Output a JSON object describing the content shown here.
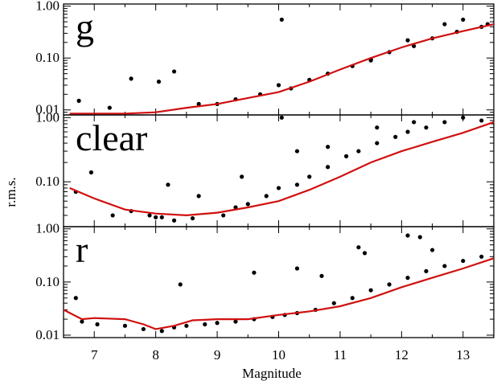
{
  "chart_data": {
    "type": "scatter",
    "xlabel": "Magnitude",
    "ylabel": "r.m.s.",
    "xlim": [
      6.5,
      13.5
    ],
    "x_ticks": [
      7,
      8,
      9,
      10,
      11,
      12,
      13
    ],
    "x_tick_labels": [
      "7",
      "8",
      "9",
      "10",
      "11",
      "12",
      "13"
    ],
    "y_scale": "log",
    "y_tick_labels": [
      "0.01",
      "0.10",
      "1.00"
    ],
    "grid": false,
    "point_color": "#000000",
    "curve_color": "#d01010",
    "panels": [
      {
        "label": "g",
        "ylim": [
          0.008,
          1.1
        ],
        "y_ticks": [
          0.01,
          0.1,
          1.0
        ],
        "y_tick_labels": [
          "0.01",
          "0.10",
          "1.00"
        ],
        "curve": {
          "x": [
            6.6,
            7.5,
            8.0,
            8.5,
            9.0,
            9.5,
            10.0,
            10.5,
            11.0,
            11.5,
            12.0,
            12.5,
            13.0,
            13.5
          ],
          "y": [
            0.0085,
            0.0085,
            0.009,
            0.011,
            0.013,
            0.017,
            0.022,
            0.035,
            0.06,
            0.1,
            0.16,
            0.24,
            0.33,
            0.45
          ]
        },
        "points": {
          "x": [
            6.75,
            7.25,
            7.6,
            8.05,
            8.3,
            8.7,
            9.0,
            9.3,
            9.7,
            10.0,
            10.2,
            10.5,
            10.8,
            11.2,
            11.5,
            11.8,
            12.2,
            12.5,
            12.9,
            13.3,
            10.05,
            11.5,
            12.1,
            12.7,
            13.0,
            13.4
          ],
          "y": [
            0.015,
            0.011,
            0.04,
            0.035,
            0.055,
            0.013,
            0.013,
            0.016,
            0.02,
            0.03,
            0.026,
            0.038,
            0.05,
            0.07,
            0.095,
            0.13,
            0.17,
            0.24,
            0.32,
            0.4,
            0.55,
            0.09,
            0.22,
            0.45,
            0.55,
            0.45
          ]
        }
      },
      {
        "label": "clear",
        "ylim": [
          0.02,
          1.1
        ],
        "y_ticks": [
          0.1,
          1.0
        ],
        "y_tick_labels": [
          "0.10",
          "1.00"
        ],
        "curve": {
          "x": [
            6.6,
            7.0,
            7.5,
            8.0,
            8.5,
            9.0,
            9.5,
            10.0,
            10.5,
            11.0,
            11.5,
            12.0,
            12.5,
            13.0,
            13.5
          ],
          "y": [
            0.08,
            0.055,
            0.037,
            0.032,
            0.03,
            0.033,
            0.04,
            0.05,
            0.075,
            0.12,
            0.2,
            0.3,
            0.42,
            0.58,
            0.85
          ]
        },
        "points": {
          "x": [
            6.7,
            6.95,
            7.3,
            7.6,
            7.9,
            8.1,
            8.3,
            8.6,
            8.7,
            9.1,
            9.3,
            9.5,
            9.8,
            10.0,
            10.05,
            10.3,
            10.5,
            10.8,
            11.1,
            11.3,
            11.6,
            11.9,
            12.1,
            12.4,
            12.7,
            13.0,
            13.3,
            8.0,
            8.2,
            9.4,
            10.3,
            10.8,
            11.6,
            12.2
          ],
          "y": [
            0.07,
            0.14,
            0.03,
            0.035,
            0.03,
            0.028,
            0.025,
            0.027,
            0.06,
            0.03,
            0.04,
            0.045,
            0.06,
            0.08,
            1.0,
            0.09,
            0.12,
            0.17,
            0.25,
            0.3,
            0.4,
            0.5,
            0.6,
            0.7,
            0.85,
            1.0,
            0.9,
            0.028,
            0.09,
            0.12,
            0.3,
            0.35,
            0.7,
            0.85
          ]
        }
      },
      {
        "label": "r",
        "ylim": [
          0.009,
          1.1
        ],
        "y_ticks": [
          0.01,
          0.1,
          1.0
        ],
        "y_tick_labels": [
          "0.01",
          "0.10",
          "1.00"
        ],
        "curve": {
          "x": [
            6.5,
            6.8,
            7.0,
            7.5,
            7.8,
            8.0,
            8.3,
            8.6,
            9.0,
            9.5,
            10.0,
            10.5,
            11.0,
            11.5,
            12.0,
            12.5,
            13.0,
            13.5
          ],
          "y": [
            0.03,
            0.02,
            0.021,
            0.02,
            0.016,
            0.013,
            0.015,
            0.019,
            0.02,
            0.02,
            0.024,
            0.028,
            0.035,
            0.05,
            0.08,
            0.12,
            0.18,
            0.28
          ]
        },
        "points": {
          "x": [
            6.7,
            6.8,
            7.05,
            7.5,
            7.8,
            8.1,
            8.3,
            8.5,
            8.8,
            9.0,
            9.3,
            9.6,
            9.9,
            10.1,
            10.3,
            10.6,
            10.9,
            11.2,
            11.5,
            11.8,
            12.1,
            12.4,
            12.7,
            13.0,
            13.3,
            11.3,
            12.1,
            12.3,
            8.4,
            9.6,
            10.3,
            10.7,
            11.4,
            12.5
          ],
          "y": [
            0.05,
            0.018,
            0.016,
            0.015,
            0.013,
            0.012,
            0.014,
            0.015,
            0.016,
            0.017,
            0.018,
            0.02,
            0.022,
            0.024,
            0.026,
            0.03,
            0.04,
            0.05,
            0.07,
            0.09,
            0.12,
            0.16,
            0.2,
            0.25,
            0.3,
            0.45,
            0.75,
            0.7,
            0.09,
            0.15,
            0.18,
            0.13,
            0.35,
            0.4
          ]
        }
      }
    ]
  }
}
